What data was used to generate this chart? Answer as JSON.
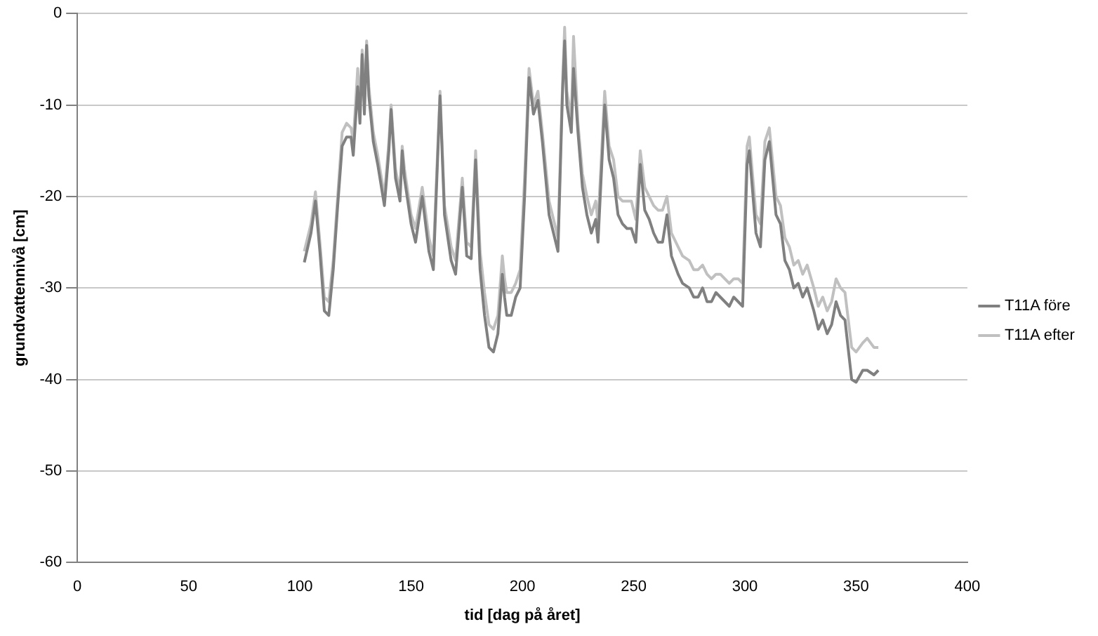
{
  "chart_data": {
    "type": "line",
    "xlabel": "tid [dag på året]",
    "ylabel": "grundvattennivå [cm]",
    "x": [
      102,
      105,
      107,
      109,
      111,
      113,
      115,
      117,
      119,
      121,
      123,
      124,
      126,
      127,
      128,
      129,
      130,
      131,
      133,
      135,
      137,
      138,
      140,
      141,
      143,
      145,
      146,
      147,
      150,
      152,
      155,
      158,
      160,
      163,
      165,
      168,
      170,
      173,
      175,
      177,
      179,
      181,
      183,
      185,
      187,
      189,
      191,
      192,
      193,
      195,
      197,
      199,
      201,
      203,
      205,
      207,
      209,
      212,
      214,
      216,
      218,
      219,
      220,
      222,
      223,
      225,
      227,
      229,
      231,
      233,
      234,
      237,
      239,
      241,
      243,
      245,
      247,
      249,
      251,
      253,
      255,
      257,
      259,
      261,
      263,
      265,
      267,
      270,
      272,
      275,
      277,
      279,
      281,
      283,
      285,
      287,
      289,
      291,
      293,
      295,
      297,
      299,
      301,
      302,
      305,
      307,
      309,
      311,
      314,
      316,
      318,
      320,
      322,
      324,
      326,
      328,
      331,
      333,
      335,
      337,
      339,
      341,
      343,
      345,
      348,
      350,
      353,
      355,
      358,
      360
    ],
    "series": [
      {
        "name": "T11A före",
        "color": "#808080",
        "values": [
          -27.2,
          -24,
          -20.5,
          -26,
          -32.5,
          -33,
          -28,
          -21,
          -14.5,
          -13.5,
          -13.5,
          -15.5,
          -8,
          -12,
          -4.5,
          -11,
          -3.5,
          -9,
          -14,
          -16.5,
          -19.5,
          -21,
          -15,
          -10.5,
          -18,
          -20.5,
          -15,
          -18,
          -23,
          -25,
          -20,
          -26,
          -28,
          -9,
          -22,
          -27,
          -28.5,
          -19,
          -26.5,
          -26.8,
          -16,
          -28,
          -33,
          -36.5,
          -37,
          -35,
          -28.5,
          -31,
          -33,
          -33,
          -31,
          -30,
          -20,
          -7,
          -11,
          -9.5,
          -14,
          -22,
          -24,
          -26,
          -9,
          -3,
          -10,
          -13,
          -6,
          -13,
          -19,
          -22,
          -24,
          -22.5,
          -25,
          -10,
          -16,
          -18,
          -22,
          -23,
          -23.5,
          -23.5,
          -25,
          -16.5,
          -21.5,
          -22.5,
          -24,
          -25,
          -25,
          -22,
          -26.5,
          -28.5,
          -29.5,
          -30,
          -31,
          -31,
          -30,
          -31.5,
          -31.5,
          -30.5,
          -31,
          -31.5,
          -32,
          -31,
          -31.5,
          -32,
          -16.5,
          -15,
          -24,
          -25.5,
          -16,
          -14,
          -22,
          -23,
          -27,
          -28,
          -30,
          -29.5,
          -31,
          -30,
          -32.5,
          -34.5,
          -33.5,
          -35,
          -34,
          -31.5,
          -33,
          -33.5,
          -40,
          -40.3,
          -39,
          -39,
          -39.5,
          -39
        ]
      },
      {
        "name": "T11A efter",
        "color": "#c0c0c0",
        "values": [
          -26,
          -23,
          -19.5,
          -25,
          -31,
          -31.5,
          -27,
          -20,
          -13,
          -12,
          -12.5,
          -14,
          -6,
          -10,
          -4,
          -9,
          -3,
          -8,
          -13,
          -15.5,
          -18.5,
          -20,
          -14,
          -10,
          -17,
          -19.5,
          -14.5,
          -17,
          -22,
          -23.5,
          -19,
          -24.5,
          -26.5,
          -8.5,
          -21,
          -25.5,
          -27,
          -18,
          -25,
          -25.5,
          -15,
          -26,
          -30.5,
          -34,
          -34.5,
          -33,
          -26.5,
          -29,
          -30.5,
          -30.5,
          -29.5,
          -28,
          -18,
          -6,
          -10,
          -8.5,
          -13,
          -20.5,
          -22.5,
          -24.5,
          -8,
          -1.5,
          -8.5,
          -11.5,
          -2.5,
          -12,
          -17.5,
          -20,
          -22,
          -20.5,
          -23,
          -8.5,
          -14.5,
          -16,
          -20,
          -20.5,
          -20.5,
          -20.5,
          -22.5,
          -15,
          -19,
          -20,
          -21,
          -21.5,
          -21.5,
          -20,
          -24,
          -25.5,
          -26.5,
          -27,
          -28,
          -28,
          -27.5,
          -28.5,
          -29,
          -28.5,
          -28.5,
          -29,
          -29.5,
          -29,
          -29,
          -29.5,
          -14.5,
          -13.5,
          -22,
          -23,
          -14,
          -12.5,
          -20,
          -21,
          -24.5,
          -25.5,
          -27.5,
          -27,
          -28.5,
          -27.5,
          -30,
          -32,
          -31,
          -32.5,
          -31.5,
          -29,
          -30,
          -30.5,
          -36.5,
          -37,
          -36,
          -35.5,
          -36.5,
          -36.5
        ]
      }
    ],
    "xlim": [
      0,
      400
    ],
    "xticks": [
      0,
      50,
      100,
      150,
      200,
      250,
      300,
      350,
      400
    ],
    "ylim": [
      -60,
      0
    ],
    "yticks": [
      -60,
      -50,
      -40,
      -30,
      -20,
      -10,
      0
    ],
    "grid": "y",
    "legend": "right",
    "marker": "none",
    "line_style": "solid"
  }
}
